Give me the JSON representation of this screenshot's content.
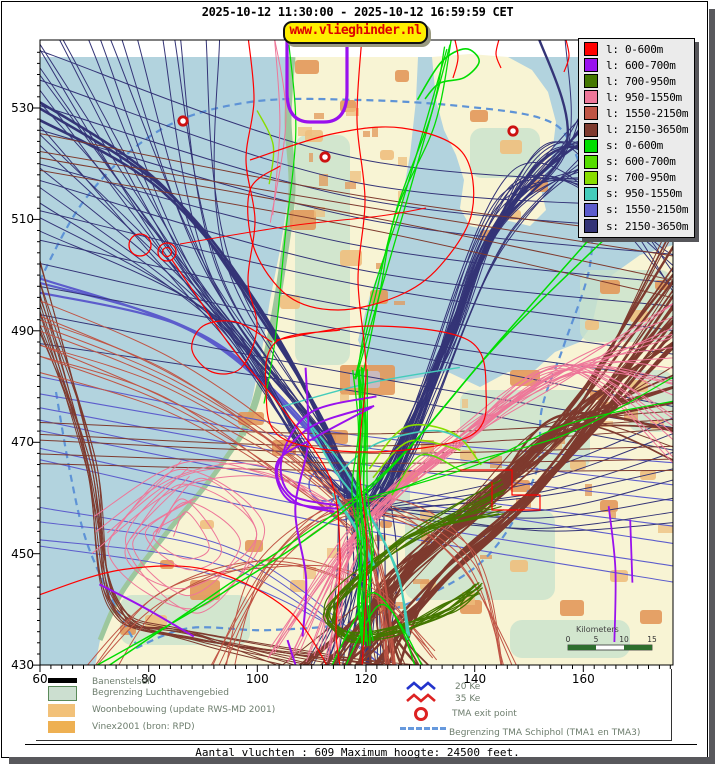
{
  "window": {
    "title": "2025-10-12 11:30:00 - 2025-10-12 16:59:59 CET"
  },
  "banner": {
    "label": "www.vlieghinder.nl",
    "bg": "#ffee00",
    "text_color": "#dd0000"
  },
  "legend": {
    "items": [
      {
        "label": "l: 0-600m",
        "color": "#ff0000"
      },
      {
        "label": "l: 600-700m",
        "color": "#9911ee"
      },
      {
        "label": "l: 700-950m",
        "color": "#447700"
      },
      {
        "label": "l: 950-1550m",
        "color": "#ee7799"
      },
      {
        "label": "l: 1550-2150m",
        "color": "#c05545"
      },
      {
        "label": "l: 2150-3650m",
        "color": "#7e3a2e"
      },
      {
        "label": "s: 0-600m",
        "color": "#00dd00"
      },
      {
        "label": "s: 600-700m",
        "color": "#55dd00"
      },
      {
        "label": "s: 700-950m",
        "color": "#88dd00"
      },
      {
        "label": "s: 950-1550m",
        "color": "#44ccbb"
      },
      {
        "label": "s: 1550-2150m",
        "color": "#5c5ccc"
      },
      {
        "label": "s: 2150-3650m",
        "color": "#343477"
      }
    ]
  },
  "map": {
    "x_ticks": [
      60,
      80,
      100,
      120,
      140,
      160
    ],
    "y_ticks": [
      530,
      510,
      490,
      470,
      450,
      430
    ],
    "x_range": [
      60,
      176.5
    ],
    "y_range": [
      430,
      542.2
    ],
    "scalebar": {
      "label": "Kilometers",
      "ticks": [
        0,
        5,
        10,
        15
      ]
    },
    "colors": {
      "sea": "#b2d3de",
      "land": "#f8f4d4",
      "dune": "#9dc79d",
      "polder": "#c8e2cc",
      "urban": "#e2985a",
      "urban_light": "#eebf7e",
      "city": "#c5bdc8",
      "tma_dash": "#5e93d6",
      "scalebar_green": "#2e6e2e"
    }
  },
  "footer": {
    "left_items": [
      {
        "label": "Banenstelsel",
        "swatch": "bar-black"
      },
      {
        "label": "Begrenzing Luchthavengebied",
        "swatch": "box-green"
      },
      {
        "label": "Woonbebouwing (update RWS-MD 2001)",
        "swatch": "box-orange-light"
      },
      {
        "label": "Vinex2001 (bron: RPD)",
        "swatch": "box-orange"
      }
    ],
    "right_items": {
      "ke20": "20 Ke",
      "ke35": "35 Ke",
      "tma_exit": "TMA exit point",
      "tma_boundary": "Begrenzing TMA Schiphol  (TMA1 en TMA3)"
    },
    "status": "Aantal vluchten : 609 Maximum hoogte: 24500 feet."
  }
}
